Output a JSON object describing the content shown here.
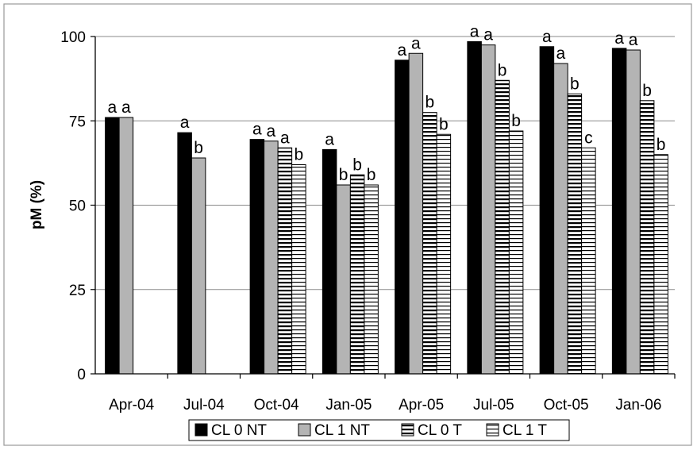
{
  "chart_data": {
    "type": "bar",
    "ylabel": "pM (%)",
    "ylim": [
      0,
      100
    ],
    "yticks": [
      "0",
      "25",
      "50",
      "75",
      "100"
    ],
    "grid": true,
    "legend_position": "bottom",
    "categories": [
      "Apr-04",
      "Jul-04",
      "Oct-04",
      "Jan-05",
      "Apr-05",
      "Jul-05",
      "Oct-05",
      "Jan-06"
    ],
    "series": [
      {
        "name": "CL 0 NT",
        "pattern": "solid-black",
        "values": [
          76,
          71.5,
          69.5,
          66.5,
          93,
          98.5,
          97,
          96.5
        ],
        "labels": [
          "a",
          "a",
          "a",
          "a",
          "a",
          "a",
          "a",
          "a"
        ]
      },
      {
        "name": "CL 1 NT",
        "pattern": "solid-gray",
        "values": [
          76,
          64,
          69,
          56,
          95,
          97.5,
          92,
          96
        ],
        "labels": [
          "a",
          "b",
          "a",
          "b",
          "a",
          "a",
          "a",
          "a"
        ]
      },
      {
        "name": "CL 0 T",
        "pattern": "dense-horizontal-lines",
        "values": [
          null,
          null,
          67,
          59,
          77.5,
          87,
          83,
          81
        ],
        "labels": [
          null,
          null,
          "a",
          "b",
          "b",
          "b",
          "b",
          "b"
        ]
      },
      {
        "name": "CL 1 T",
        "pattern": "horizontal-lines",
        "values": [
          null,
          null,
          62,
          56,
          71,
          72,
          67,
          65
        ],
        "labels": [
          null,
          null,
          "b",
          "b",
          "b",
          "b",
          "c",
          "b"
        ]
      }
    ],
    "colors": {
      "cl0nt": "#000000",
      "cl1nt": "#b4b4b4",
      "grid": "#8a8a8a",
      "border": "#999999"
    }
  }
}
